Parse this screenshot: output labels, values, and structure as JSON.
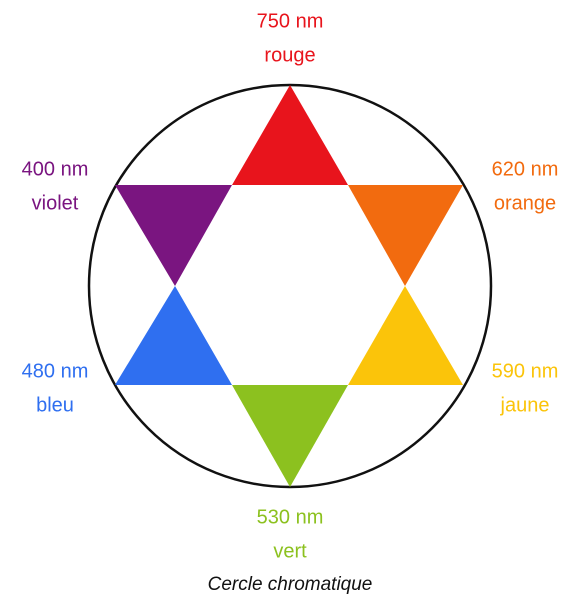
{
  "nodes": [
    {
      "wavelength": "750 nm",
      "label": "rouge",
      "color": "#e8141c"
    },
    {
      "wavelength": "620 nm",
      "label": "orange",
      "color": "#f26b0f"
    },
    {
      "wavelength": "590 nm",
      "label": "jaune",
      "color": "#fbc40a"
    },
    {
      "wavelength": "530 nm",
      "label": "vert",
      "color": "#8cc11f"
    },
    {
      "wavelength": "480 nm",
      "label": "bleu",
      "color": "#2f6ff0"
    },
    {
      "wavelength": "400 nm",
      "label": "violet",
      "color": "#7a1580"
    }
  ],
  "caption": "Cercle chromatique"
}
